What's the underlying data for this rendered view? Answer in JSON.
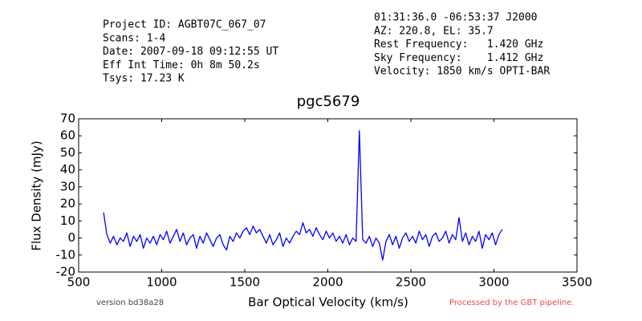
{
  "chart_data": {
    "type": "line",
    "title": "pgc5679",
    "header_left": [
      "Project ID: AGBT07C_067_07",
      "Scans: 1-4",
      "Date: 2007-09-18 09:12:55 UT",
      "Eff Int Time: 0h 8m 50.2s",
      "Tsys: 17.23 K"
    ],
    "header_right": [
      "01:31:36.0 -06:53:37 J2000",
      "AZ: 220.8, EL: 35.7",
      "Rest Frequency:   1.420 GHz",
      "Sky Frequency:    1.412 GHz",
      "Velocity: 1850 km/s OPTI-BAR"
    ],
    "footer_left": "version bd38a28",
    "footer_right": "Processed by the GBT pipeline.",
    "xlabel": "Bar Optical Velocity (km/s)",
    "ylabel": "Flux Density (mJy)",
    "xlim": [
      500,
      3500
    ],
    "xticks": [
      500,
      1000,
      1500,
      2000,
      2500,
      3000,
      3500
    ],
    "ylim": [
      -20,
      70
    ],
    "yticks": [
      -20,
      -10,
      0,
      10,
      20,
      30,
      40,
      50,
      60,
      70
    ],
    "color": "#0000ff",
    "x": [
      650,
      670,
      690,
      710,
      730,
      750,
      770,
      790,
      810,
      830,
      850,
      870,
      890,
      910,
      930,
      950,
      970,
      990,
      1010,
      1030,
      1050,
      1070,
      1090,
      1110,
      1130,
      1150,
      1170,
      1190,
      1210,
      1230,
      1250,
      1270,
      1290,
      1310,
      1330,
      1350,
      1370,
      1390,
      1410,
      1430,
      1450,
      1470,
      1490,
      1510,
      1530,
      1550,
      1570,
      1590,
      1610,
      1630,
      1650,
      1670,
      1690,
      1710,
      1730,
      1750,
      1770,
      1790,
      1810,
      1830,
      1850,
      1870,
      1890,
      1910,
      1930,
      1950,
      1970,
      1990,
      2010,
      2030,
      2050,
      2070,
      2090,
      2110,
      2130,
      2150,
      2170,
      2190,
      2210,
      2230,
      2250,
      2270,
      2290,
      2310,
      2330,
      2350,
      2370,
      2390,
      2410,
      2430,
      2450,
      2470,
      2490,
      2510,
      2530,
      2550,
      2570,
      2590,
      2610,
      2630,
      2650,
      2670,
      2690,
      2710,
      2730,
      2750,
      2770,
      2790,
      2810,
      2830,
      2850,
      2870,
      2890,
      2910,
      2930,
      2950,
      2970,
      2990,
      3010,
      3030,
      3050
    ],
    "values": [
      15,
      2,
      -3,
      1,
      -4,
      0,
      -2,
      3,
      -5,
      1,
      -2,
      2,
      -6,
      0,
      -3,
      1,
      -4,
      2,
      -1,
      4,
      -3,
      1,
      5,
      -2,
      3,
      -4,
      0,
      2,
      -6,
      1,
      -3,
      3,
      -1,
      -5,
      0,
      2,
      -4,
      -7,
      1,
      -2,
      3,
      0,
      4,
      6,
      2,
      7,
      3,
      5,
      1,
      -3,
      2,
      -4,
      -1,
      3,
      -5,
      0,
      -3,
      1,
      4,
      2,
      9,
      3,
      5,
      1,
      6,
      2,
      -1,
      4,
      0,
      3,
      -2,
      1,
      -3,
      2,
      -4,
      0,
      -2,
      63,
      -1,
      -3,
      1,
      -5,
      0,
      -3,
      -13,
      -2,
      2,
      -4,
      1,
      -6,
      0,
      3,
      -2,
      1,
      -3,
      4,
      -1,
      2,
      -5,
      1,
      3,
      -2,
      0,
      4,
      -3,
      2,
      -1,
      12,
      -2,
      3,
      -4,
      1,
      -2,
      4,
      -6,
      2,
      -1,
      3,
      -4,
      2,
      5
    ]
  }
}
